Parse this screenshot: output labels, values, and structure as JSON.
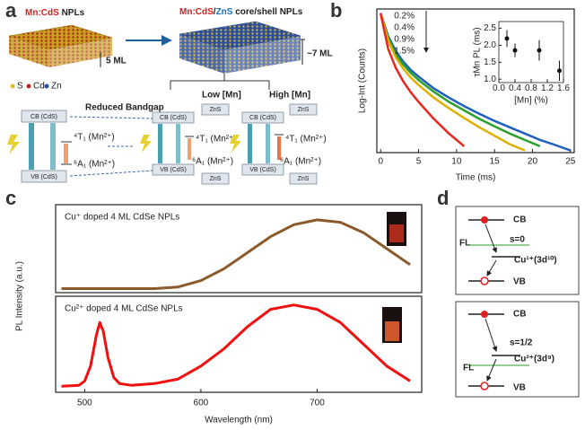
{
  "panel_labels": [
    "a",
    "b",
    "c",
    "d"
  ],
  "panel_a": {
    "core_title": [
      "Mn:CdS",
      "NPLs"
    ],
    "shell_title": [
      "Mn:CdS",
      "/",
      "ZnS",
      "core/shell NPLs"
    ],
    "core_thickness": "5 ML",
    "shell_thickness": "~7 ML",
    "elements": [
      "S",
      "Cd",
      "Zn"
    ],
    "reduced_bandgap": "Reduced Bandgap",
    "low_mn": "Low [Mn]",
    "high_mn": "High [Mn]",
    "cb": "CB (CdS)",
    "vb": "VB (CdS)",
    "zns": "ZnS",
    "t1": "⁴T₁ (Mn²⁺)",
    "a1": "⁶A₁ (Mn²⁺)"
  },
  "panel_d": {
    "top": {
      "cb": "CB",
      "fl": "FL",
      "spin": "s=0",
      "level": "Cu¹⁺(3d¹⁰)",
      "vb": "VB"
    },
    "bottom": {
      "cb": "CB",
      "fl": "FL",
      "spin": "s=1/2",
      "level": "Cu²⁺(3d⁹)",
      "vb": "VB"
    }
  },
  "chart_data": [
    {
      "type": "line",
      "xlabel": "Time (ms)",
      "ylabel": "Log-Int (Counts)",
      "x": [
        0,
        1,
        2,
        3,
        4,
        5,
        7,
        9,
        11,
        13,
        15,
        17,
        19,
        21,
        23,
        25
      ],
      "series": [
        {
          "name": "0.2%",
          "color": "#1f5fbf",
          "values": [
            0,
            -0.55,
            -0.9,
            -1.15,
            -1.35,
            -1.5,
            -1.78,
            -2.0,
            -2.2,
            -2.38,
            -2.55,
            -2.7,
            -2.85,
            -3.0,
            -3.12,
            -3.25
          ]
        },
        {
          "name": "0.4%",
          "color": "#2ca02c",
          "values": [
            0,
            -0.6,
            -0.97,
            -1.22,
            -1.42,
            -1.58,
            -1.86,
            -2.1,
            -2.3,
            -2.5,
            -2.68,
            -2.85,
            -3.0,
            -3.15,
            null,
            null
          ]
        },
        {
          "name": "0.9%",
          "color": "#e0b000",
          "values": [
            0,
            -0.65,
            -1.05,
            -1.32,
            -1.53,
            -1.7,
            -2.0,
            -2.25,
            -2.48,
            -2.7,
            -2.9,
            -3.1,
            -3.25,
            null,
            null,
            null
          ]
        },
        {
          "name": "1.5%",
          "color": "#e8261f",
          "values": [
            0,
            -0.85,
            -1.3,
            -1.62,
            -1.88,
            -2.1,
            -2.5,
            -2.85,
            -3.15,
            null,
            null,
            null,
            null,
            null,
            null,
            null
          ]
        }
      ],
      "xlim": [
        -0.5,
        25.5
      ],
      "ylim": [
        -3.3,
        0.1
      ],
      "xticks": [
        0,
        5,
        10,
        15,
        20,
        25
      ]
    },
    {
      "type": "scatter",
      "xlabel": "[Mn] (%)",
      "ylabel": "τMn PL (ms)",
      "x": [
        0.2,
        0.4,
        1.0,
        1.5
      ],
      "values": [
        2.2,
        1.85,
        1.85,
        1.25
      ],
      "errors": [
        0.25,
        0.2,
        0.3,
        0.3
      ],
      "color": "#111111",
      "xlim": [
        0,
        1.6
      ],
      "ylim": [
        0.9,
        2.7
      ],
      "xticks": [
        {
          "value": 0,
          "label": "0.0"
        },
        0.4,
        0.8,
        1.2,
        1.6
      ],
      "yticks": [
        {
          "value": 1,
          "label": "1.0"
        },
        1.5,
        {
          "value": 2,
          "label": "2.0"
        },
        2.5
      ]
    },
    {
      "type": "line",
      "title": "Cu⁺ doped 4 ML CdSe NPLs",
      "color": "#8b5a2b",
      "x": [
        480,
        520,
        560,
        580,
        600,
        620,
        640,
        660,
        680,
        700,
        720,
        740,
        760,
        780
      ],
      "values": [
        0,
        0,
        0,
        0.02,
        0.1,
        0.25,
        0.45,
        0.65,
        0.8,
        0.86,
        0.83,
        0.7,
        0.5,
        0.3
      ],
      "xlim": [
        475,
        790
      ],
      "ylim": [
        -0.05,
        1.05
      ]
    },
    {
      "type": "line",
      "title": "Cu²⁺ doped 4 ML CdSe NPLs",
      "color": "#f01010",
      "xlabel": "Wavelength (nm)",
      "ylabel": "PL Intensity (a.u.)",
      "x": [
        480,
        495,
        500,
        505,
        510,
        513,
        516,
        520,
        525,
        530,
        540,
        560,
        580,
        600,
        620,
        640,
        660,
        680,
        700,
        720,
        740,
        760,
        780
      ],
      "values": [
        0.02,
        0.03,
        0.08,
        0.25,
        0.6,
        0.75,
        0.65,
        0.35,
        0.12,
        0.05,
        0.03,
        0.05,
        0.1,
        0.25,
        0.45,
        0.7,
        0.9,
        0.95,
        0.9,
        0.75,
        0.5,
        0.25,
        0.08
      ],
      "xlim": [
        475,
        790
      ],
      "ylim": [
        -0.05,
        1.05
      ],
      "xticks": [
        500,
        600,
        700
      ]
    }
  ]
}
